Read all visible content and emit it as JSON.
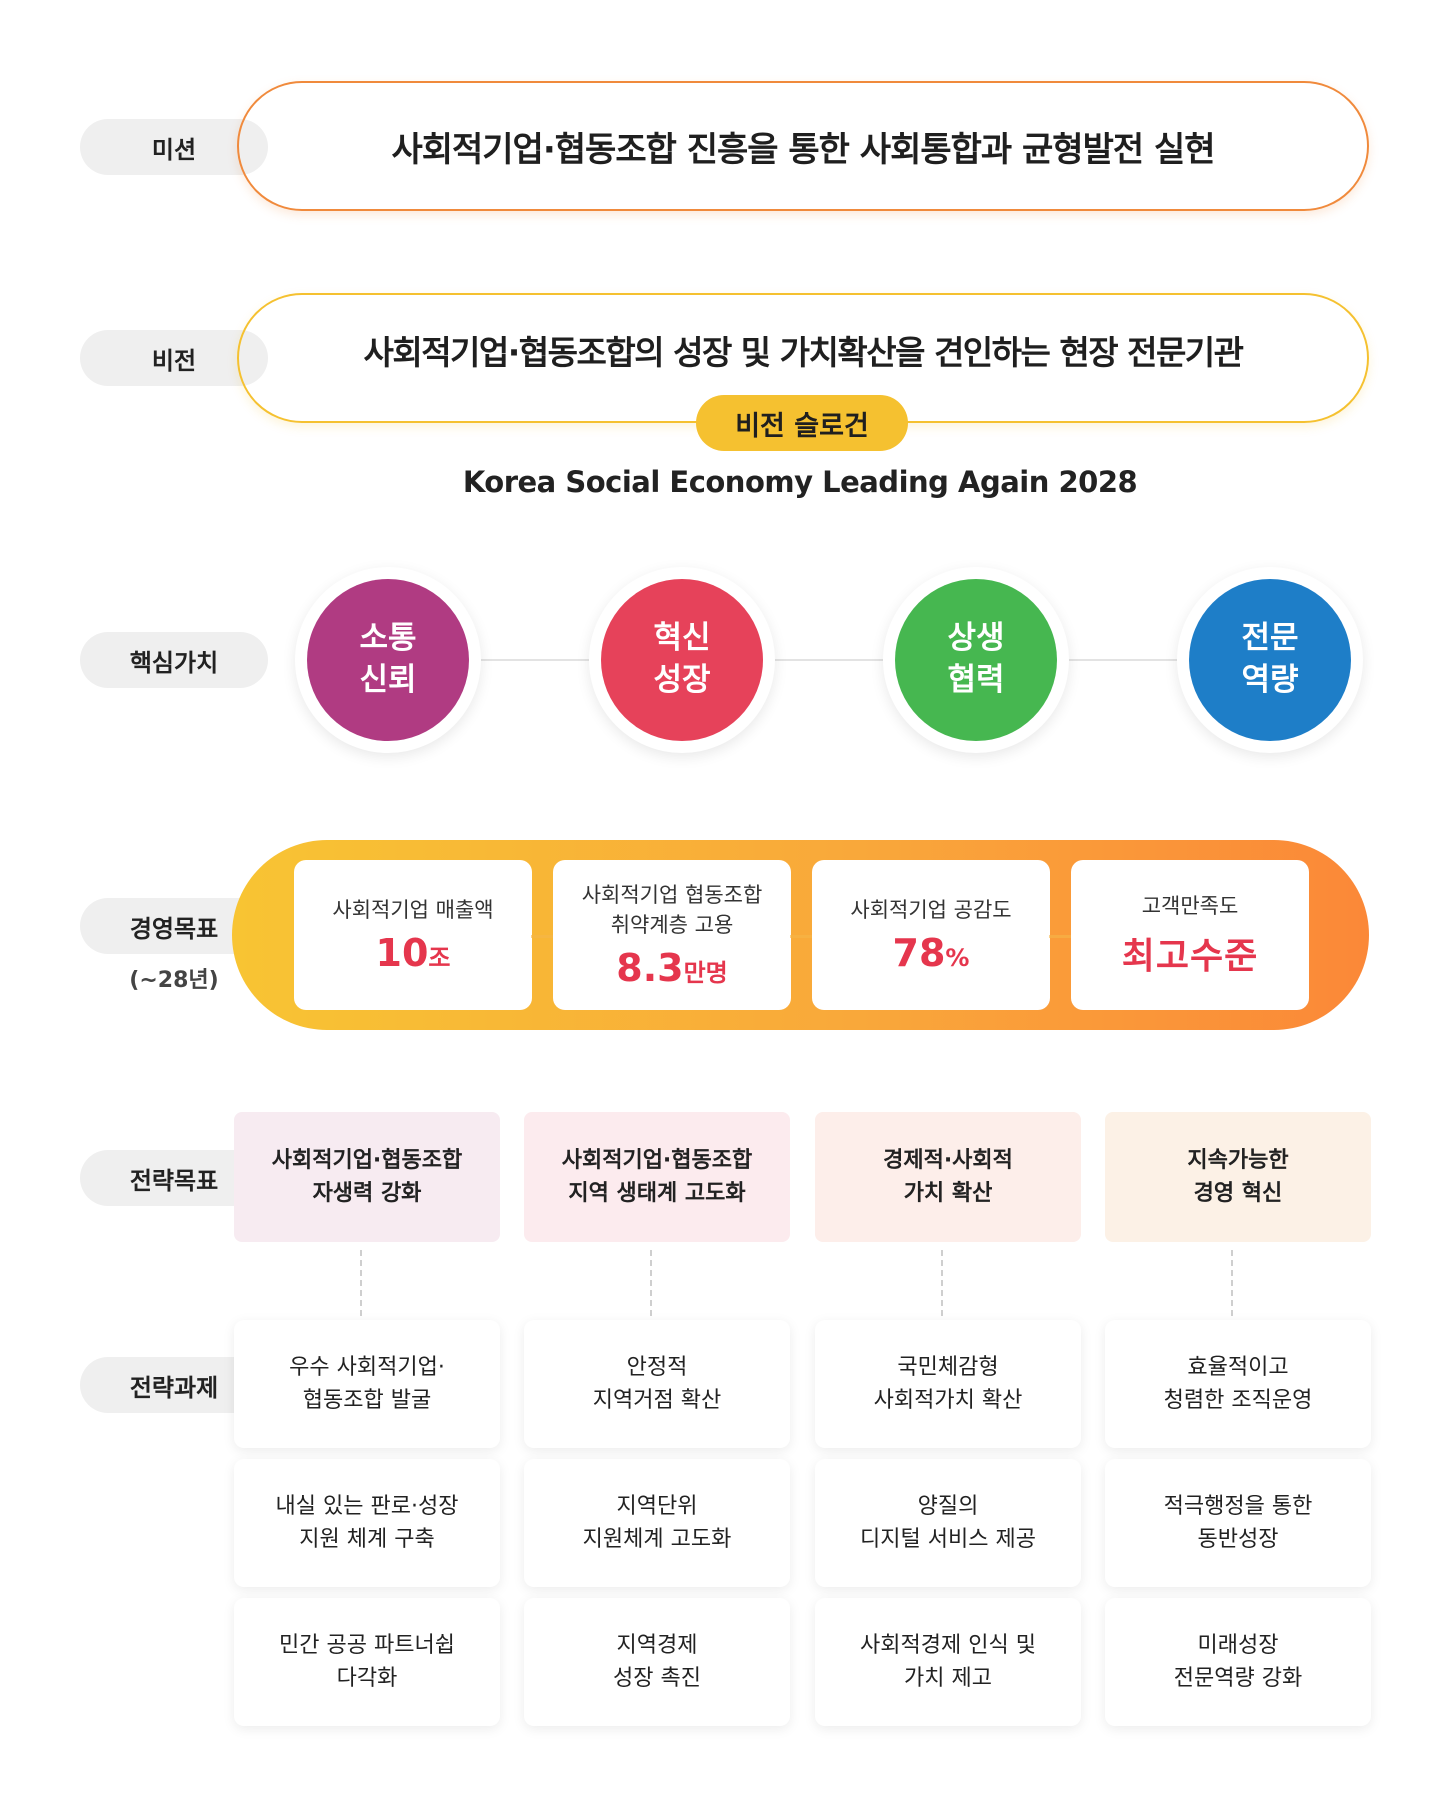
{
  "labels": {
    "mission": "미션",
    "vision": "비전",
    "values": "핵심가치",
    "goals": "경영목표",
    "goals_sub": "(~28년)",
    "strategic_goals": "전략목표",
    "strategic_tasks": "전략과제"
  },
  "mission": "사회적기업·협동조합 진흥을 통한 사회통합과 균형발전 실현",
  "vision": "사회적기업·협동조합의 성장 및 가치확산을 견인하는 현장 전문기관",
  "slogan": {
    "label": "비전 슬로건",
    "text": "Korea Social Economy Leading Again 2028"
  },
  "core_values": [
    {
      "line1": "소통",
      "line2": "신뢰",
      "color": "#b03b82"
    },
    {
      "line1": "혁신",
      "line2": "성장",
      "color": "#e6425a"
    },
    {
      "line1": "상생",
      "line2": "협력",
      "color": "#46b750"
    },
    {
      "line1": "전문",
      "line2": "역량",
      "color": "#1e7ec8"
    }
  ],
  "management_goals": [
    {
      "title": "사회적기업 매출액",
      "value": "10",
      "unit": "조"
    },
    {
      "title": "사회적기업 협동조합\n취약계층 고용",
      "value": "8.3",
      "unit": "만명"
    },
    {
      "title": "사회적기업 공감도",
      "value": "78",
      "unit": "%"
    },
    {
      "title": "고객만족도",
      "value": "최고수준",
      "unit": ""
    }
  ],
  "strategic_goals": [
    {
      "text": "사회적기업·협동조합\n자생력 강화",
      "bg": "#f7ebf1"
    },
    {
      "text": "사회적기업·협동조합\n지역 생태계 고도화",
      "bg": "#fcebee"
    },
    {
      "text": "경제적·사회적\n가치 확산",
      "bg": "#fdeeea"
    },
    {
      "text": "지속가능한\n경영 혁신",
      "bg": "#fcf1e6"
    }
  ],
  "strategic_tasks": [
    [
      "우수 사회적기업·\n협동조합 발굴",
      "내실 있는 판로·성장\n지원 체계 구축",
      "민간 공공 파트너쉽\n다각화"
    ],
    [
      "안정적\n지역거점 확산",
      "지역단위\n지원체계 고도화",
      "지역경제\n성장 촉진"
    ],
    [
      "국민체감형\n사회적가치 확산",
      "양질의\n디지털 서비스 제공",
      "사회적경제 인식 및\n가치 제고"
    ],
    [
      "효율적이고\n청렴한 조직운영",
      "적극행정을 통한\n동반성장",
      "미래성장\n전문역량 강화"
    ]
  ]
}
